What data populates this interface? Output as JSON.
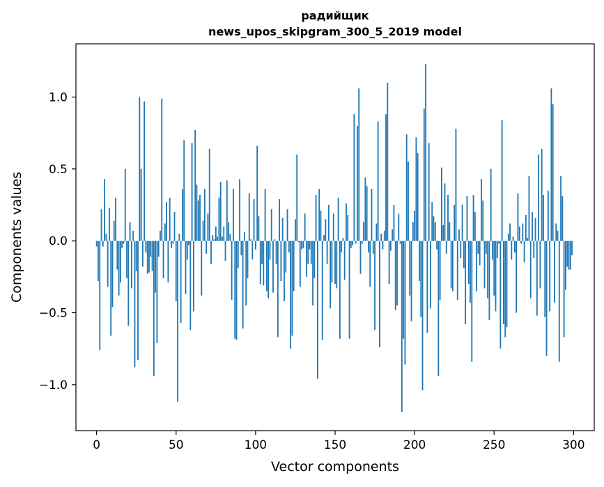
{
  "chart_data": {
    "type": "bar",
    "title": "радийщик",
    "subtitle": "news_upos_skipgram_300_5_2019 model",
    "xlabel": "Vector components",
    "ylabel": "Components values",
    "xlim": [
      -13,
      313
    ],
    "ylim": [
      -1.32,
      1.37
    ],
    "xticks": [
      0,
      50,
      100,
      150,
      200,
      250,
      300
    ],
    "yticks": [
      -1.0,
      -0.5,
      0.0,
      0.5,
      1.0
    ],
    "ytick_labels": [
      "−1.0",
      "−0.5",
      "0.0",
      "0.5",
      "1.0"
    ],
    "bar_color": "#1f77b4",
    "grid": false,
    "values": [
      -0.04,
      -0.28,
      -0.76,
      0.22,
      -0.04,
      0.43,
      0.05,
      -0.32,
      0.23,
      -0.66,
      -0.46,
      0.14,
      0.3,
      -0.2,
      -0.38,
      -0.29,
      -0.05,
      -0.02,
      0.5,
      -0.26,
      -0.59,
      0.13,
      -0.33,
      0.07,
      -0.88,
      -0.21,
      -0.83,
      1.0,
      0.5,
      -0.18,
      0.97,
      -0.08,
      -0.23,
      -0.22,
      -0.11,
      -0.21,
      -0.94,
      -0.36,
      -0.71,
      -0.11,
      0.07,
      0.99,
      -0.26,
      0.12,
      0.27,
      -0.29,
      0.3,
      -0.05,
      -0.02,
      0.2,
      -0.42,
      -1.12,
      0.05,
      -0.57,
      0.36,
      0.7,
      -0.37,
      -0.13,
      -0.03,
      -0.62,
      0.68,
      -0.49,
      0.77,
      0.39,
      0.28,
      0.32,
      -0.38,
      0.14,
      0.36,
      -0.09,
      0.19,
      0.64,
      -0.16,
      0.04,
      0.01,
      0.1,
      0.03,
      0.3,
      0.41,
      0.03,
      0.1,
      -0.14,
      0.42,
      0.13,
      0.05,
      -0.41,
      0.36,
      -0.68,
      -0.69,
      -0.19,
      0.43,
      -0.1,
      -0.61,
      0.06,
      -0.45,
      -0.26,
      0.33,
      0.01,
      -0.13,
      0.29,
      -0.06,
      0.66,
      0.17,
      -0.3,
      -0.16,
      -0.31,
      0.36,
      -0.35,
      -0.4,
      -0.13,
      0.22,
      -0.36,
      0.01,
      -0.16,
      -0.67,
      0.29,
      -0.28,
      0.16,
      -0.42,
      -0.22,
      0.22,
      -0.08,
      -0.75,
      -0.66,
      -0.35,
      0.15,
      0.6,
      -0.01,
      -0.32,
      -0.06,
      -0.05,
      0.19,
      -0.25,
      -0.16,
      -0.06,
      -0.16,
      -0.45,
      -0.26,
      0.32,
      -0.96,
      0.36,
      0.21,
      -0.69,
      0.04,
      0.15,
      -0.16,
      0.25,
      -0.47,
      -0.29,
      0.19,
      -0.3,
      -0.33,
      0.3,
      -0.68,
      -0.08,
      0.02,
      -0.27,
      0.26,
      0.18,
      -0.68,
      -0.05,
      -0.03,
      0.88,
      -0.02,
      0.8,
      1.06,
      -0.23,
      -0.02,
      0.13,
      0.44,
      0.38,
      -0.08,
      -0.32,
      0.36,
      -0.09,
      -0.62,
      0.12,
      0.83,
      -0.74,
      0.05,
      -0.06,
      0.07,
      0.88,
      1.1,
      -0.3,
      -0.07,
      0.08,
      0.25,
      -0.48,
      -0.45,
      0.19,
      -0.02,
      -1.19,
      -0.68,
      -0.86,
      0.74,
      0.55,
      -0.38,
      -0.56,
      0.13,
      0.21,
      0.72,
      0.61,
      -0.28,
      -0.53,
      -1.04,
      0.92,
      1.23,
      -0.64,
      0.68,
      -0.47,
      0.27,
      0.17,
      0.13,
      -0.06,
      -0.94,
      -0.41,
      0.51,
      0.11,
      0.4,
      -0.09,
      0.32,
      0.13,
      -0.33,
      -0.35,
      0.25,
      0.78,
      -0.41,
      0.08,
      -0.12,
      0.25,
      -0.19,
      -0.58,
      0.31,
      -0.3,
      -0.43,
      -0.84,
      0.32,
      0.2,
      -0.35,
      -0.09,
      -0.17,
      0.43,
      0.28,
      -0.33,
      -0.09,
      -0.4,
      -0.55,
      0.5,
      -0.13,
      -0.38,
      -0.49,
      -0.12,
      -0.02,
      -0.75,
      0.84,
      -0.58,
      -0.67,
      -0.6,
      0.05,
      0.12,
      -0.13,
      0.03,
      -0.08,
      -0.5,
      0.33,
      0.1,
      -0.02,
      0.12,
      -0.15,
      0.18,
      0.02,
      0.45,
      -0.4,
      0.2,
      -0.12,
      0.16,
      -0.52,
      0.6,
      -0.33,
      0.64,
      0.32,
      -0.53,
      -0.8,
      0.35,
      -0.49,
      1.06,
      0.95,
      -0.43,
      0.12,
      0.07,
      -0.84,
      0.45,
      0.31,
      -0.67,
      -0.34,
      -0.18,
      -0.2,
      -0.2,
      -0.1
    ]
  }
}
